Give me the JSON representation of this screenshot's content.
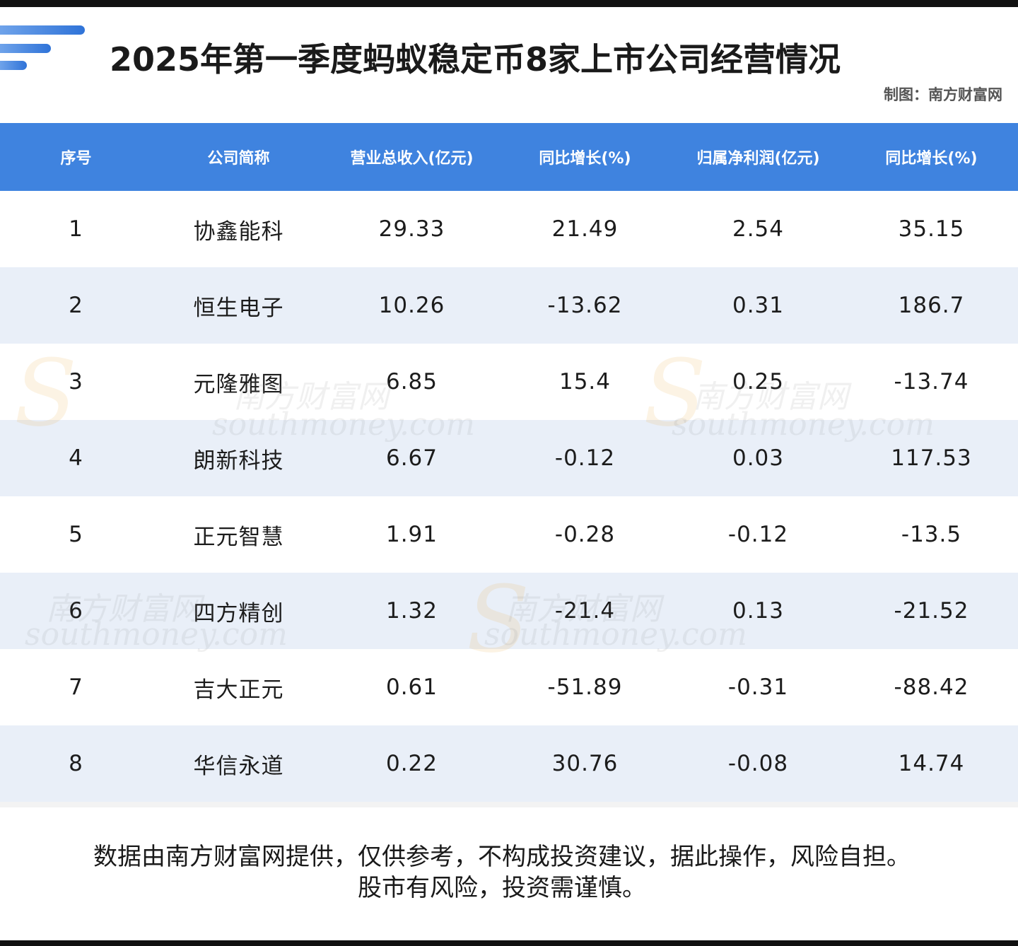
{
  "header": {
    "title": "2025年第一季度蚂蚁稳定币8家上市公司经营情况",
    "credit": "制图：南方财富网"
  },
  "table": {
    "columns": [
      "序号",
      "公司简称",
      "营业总收入(亿元)",
      "同比增长(%)",
      "归属净利润(亿元)",
      "同比增长(%)"
    ],
    "rows": [
      [
        "1",
        "协鑫能科",
        "29.33",
        "21.49",
        "2.54",
        "35.15"
      ],
      [
        "2",
        "恒生电子",
        "10.26",
        "-13.62",
        "0.31",
        "186.7"
      ],
      [
        "3",
        "元隆雅图",
        "6.85",
        "15.4",
        "0.25",
        "-13.74"
      ],
      [
        "4",
        "朗新科技",
        "6.67",
        "-0.12",
        "0.03",
        "117.53"
      ],
      [
        "5",
        "正元智慧",
        "1.91",
        "-0.28",
        "-0.12",
        "-13.5"
      ],
      [
        "6",
        "四方精创",
        "1.32",
        "-21.4",
        "0.13",
        "-21.52"
      ],
      [
        "7",
        "吉大正元",
        "0.61",
        "-51.89",
        "-0.31",
        "-88.42"
      ],
      [
        "8",
        "华信永道",
        "0.22",
        "30.76",
        "-0.08",
        "14.74"
      ]
    ]
  },
  "watermark": {
    "cn": "南方财富网",
    "en": "southmoney.com"
  },
  "footer": {
    "line1": "数据由南方财富网提供，仅供参考，不构成投资建议，据此操作，风险自担。",
    "line2": "股市有风险，投资需谨慎。"
  }
}
